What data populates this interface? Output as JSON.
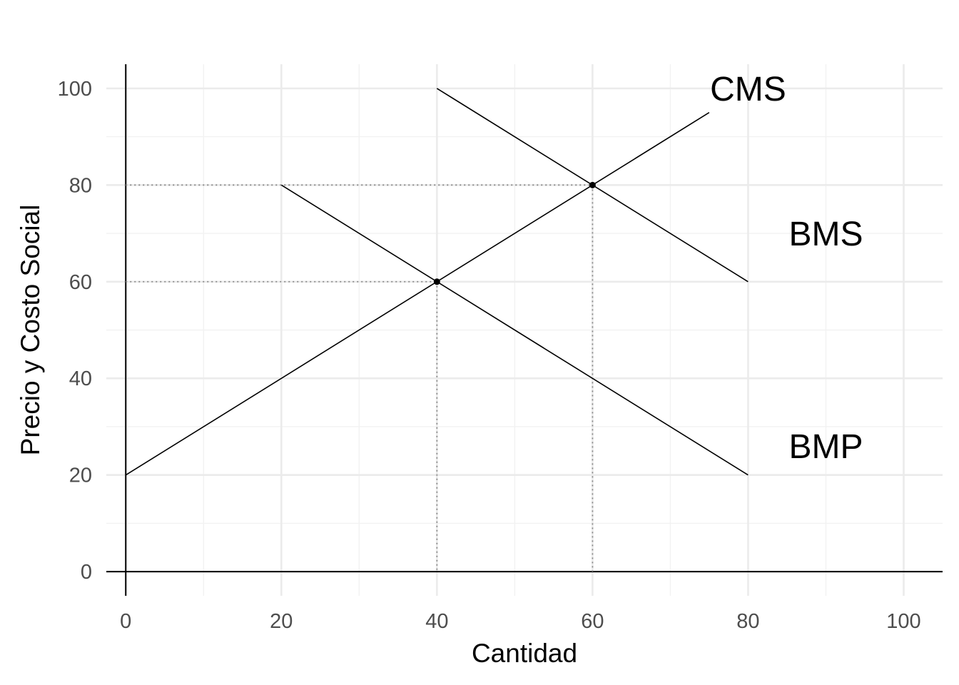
{
  "chart_data": {
    "type": "line",
    "title": "",
    "xlabel": "Cantidad",
    "ylabel": "Precio y Costo Social",
    "xlim": [
      -2.5,
      105
    ],
    "ylim": [
      -5,
      105
    ],
    "x_ticks": [
      0,
      20,
      40,
      60,
      80,
      100
    ],
    "y_ticks": [
      0,
      20,
      40,
      60,
      80,
      100
    ],
    "x_tick_labels": [
      "0",
      "20",
      "40",
      "60",
      "80",
      "100"
    ],
    "y_tick_labels": [
      "0",
      "20",
      "40",
      "60",
      "80",
      "100"
    ],
    "grid": true,
    "legend": "none",
    "series": [
      {
        "name": "CMS",
        "points": [
          {
            "x": 0,
            "y": 20
          },
          {
            "x": 75,
            "y": 95
          }
        ],
        "label_at": {
          "x": 80,
          "y": 100
        }
      },
      {
        "name": "BMS",
        "points": [
          {
            "x": 40,
            "y": 100
          },
          {
            "x": 80,
            "y": 60
          }
        ],
        "label_at": {
          "x": 90,
          "y": 70
        }
      },
      {
        "name": "BMP",
        "points": [
          {
            "x": 20,
            "y": 80
          },
          {
            "x": 80,
            "y": 20
          }
        ],
        "label_at": {
          "x": 90,
          "y": 26
        }
      }
    ],
    "highlight_points": [
      {
        "x": 40,
        "y": 60
      },
      {
        "x": 60,
        "y": 80
      }
    ]
  }
}
